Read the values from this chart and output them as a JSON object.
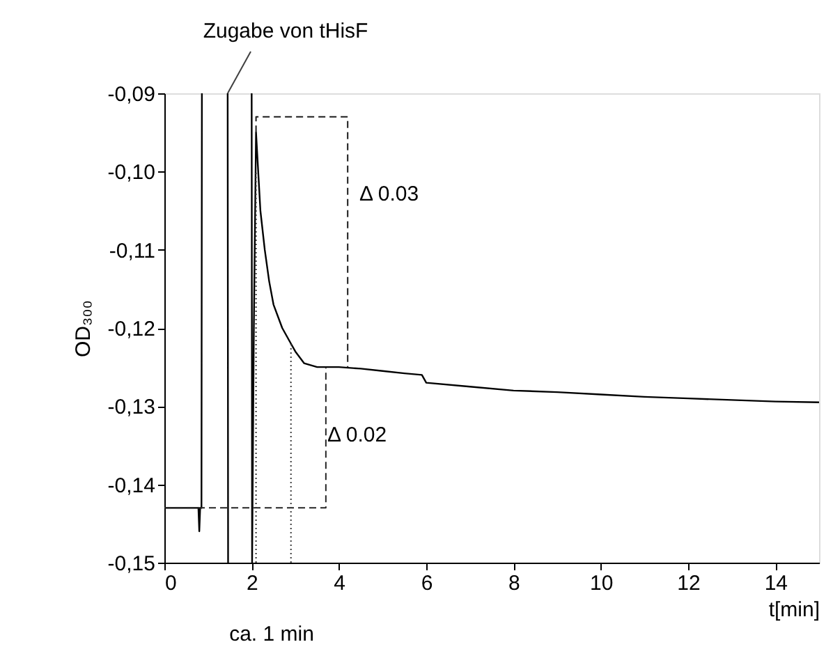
{
  "chart_data": {
    "type": "line",
    "xlabel": "t[min]",
    "ylabel": "OD₃₀₀",
    "x": [
      0,
      0.5,
      0.78,
      0.8,
      0.82,
      0.85,
      0.86,
      0.87,
      1.45,
      1.46,
      1.5,
      2.0,
      2.01,
      2.05,
      2.1,
      2.15,
      2.2,
      2.3,
      2.4,
      2.5,
      2.7,
      2.9,
      3.0,
      3.2,
      3.5,
      4,
      4.5,
      5,
      5.5,
      5.9,
      6.0,
      7,
      8,
      9,
      10,
      11,
      12,
      13,
      14,
      15
    ],
    "series": [
      {
        "color": "#000000",
        "values": [
          -0.143,
          -0.143,
          -0.143,
          -0.146,
          -0.143,
          -0.143,
          -0.09,
          null,
          -0.09,
          -0.15,
          null,
          -0.09,
          -0.15,
          -0.12,
          -0.095,
          -0.1,
          -0.105,
          -0.11,
          -0.114,
          -0.117,
          -0.12,
          -0.122,
          -0.123,
          -0.1245,
          -0.125,
          -0.125,
          -0.1252,
          -0.1255,
          -0.1258,
          -0.126,
          -0.127,
          -0.1275,
          -0.128,
          -0.1282,
          -0.1285,
          -0.1288,
          -0.129,
          -0.1292,
          -0.1294,
          -0.1295
        ]
      },
      {
        "type": "line",
        "color": "#1a1a1a",
        "line_style": "dashed",
        "x": [
          2.1,
          2.1,
          4.2,
          4.2
        ],
        "values": [
          -0.095,
          -0.093,
          -0.093,
          -0.125
        ]
      },
      {
        "type": "line",
        "color": "#262626",
        "line_style": "dashed",
        "x": [
          0,
          3.7,
          3.7
        ],
        "values": [
          -0.143,
          -0.143,
          -0.125
        ]
      },
      {
        "type": "line",
        "color": "#333333",
        "line_style": "dotted",
        "x": [
          2.1,
          2.1
        ],
        "values": [
          -0.15,
          -0.1
        ]
      },
      {
        "type": "line",
        "color": "#3d3d3d",
        "line_style": "dotted",
        "x": [
          2.9,
          2.9
        ],
        "values": [
          -0.15,
          -0.122
        ]
      }
    ],
    "xlim": [
      0,
      15
    ],
    "xticks": [
      0,
      2,
      4,
      6,
      8,
      10,
      12,
      14
    ],
    "ylim": [
      -0.15,
      -0.09
    ],
    "yticks": [
      {
        "value": -0.15,
        "label": "-0,15"
      },
      {
        "value": -0.14,
        "label": "-0,14"
      },
      {
        "value": -0.13,
        "label": "-0,13"
      },
      {
        "value": -0.12,
        "label": "-0,12"
      },
      {
        "value": -0.11,
        "label": "-0,11"
      },
      {
        "value": -0.1,
        "label": "-0,10"
      },
      {
        "value": -0.09,
        "label": "-0,09"
      }
    ],
    "annotations": [
      {
        "text": "Zugabe von tHisF",
        "x": 1.45,
        "y": -0.09
      },
      "Δ 0.03",
      "Δ 0.02",
      "ca. 1 min"
    ],
    "grid": false,
    "marker": "none",
    "line_style": "solid"
  }
}
